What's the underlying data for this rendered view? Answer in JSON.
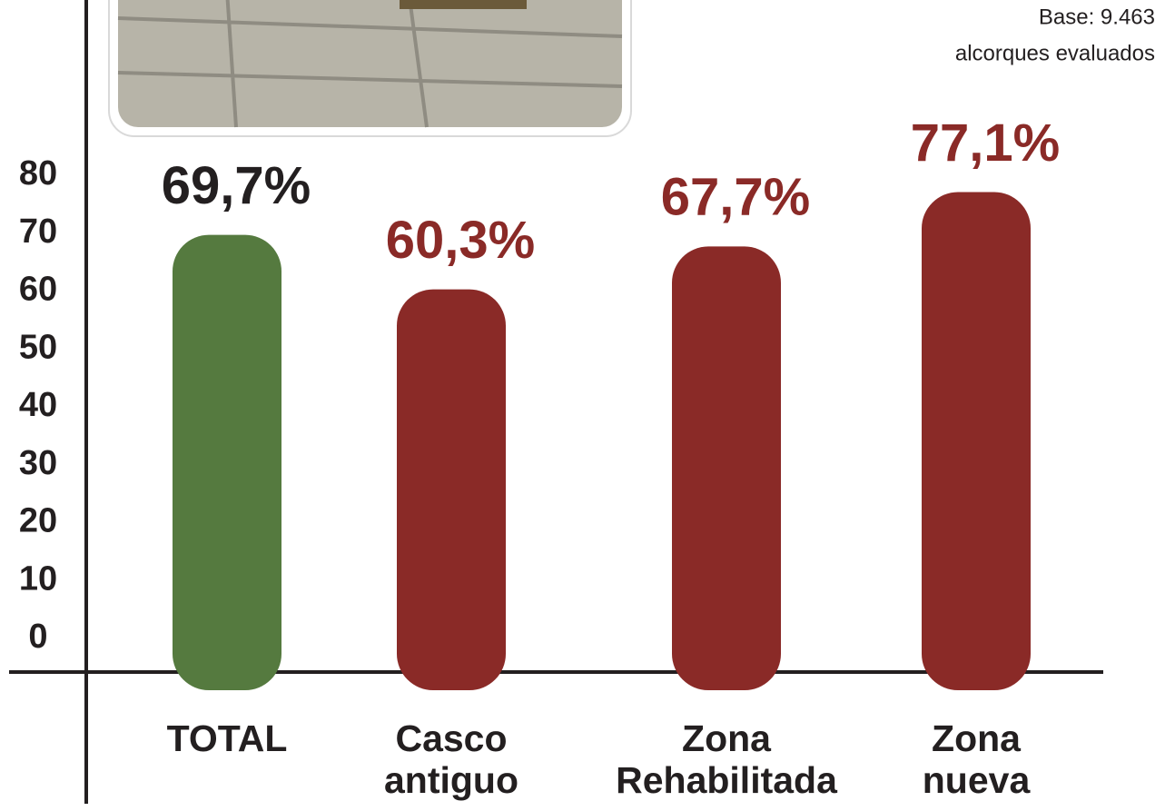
{
  "chart_data": {
    "type": "bar",
    "annotation": [
      "Base: 9.463",
      "alcorques evaluados"
    ],
    "categories": [
      "TOTAL",
      "Casco antiguo",
      "Zona Rehabilitada",
      "Zona nueva"
    ],
    "values": [
      69.7,
      60.3,
      67.7,
      77.1
    ],
    "value_labels": [
      "69,7%",
      "60,3%",
      "67,7%",
      "77,1%"
    ],
    "colors": [
      "#557a3f",
      "#8a2a27",
      "#8a2a27",
      "#8a2a27"
    ],
    "label_colors": [
      "#231f20",
      "#8a2a27",
      "#8a2a27",
      "#8a2a27"
    ],
    "ylim": [
      0,
      80
    ],
    "yticks": [
      0,
      10,
      20,
      30,
      40,
      50,
      60,
      70,
      80
    ],
    "grid": false
  }
}
